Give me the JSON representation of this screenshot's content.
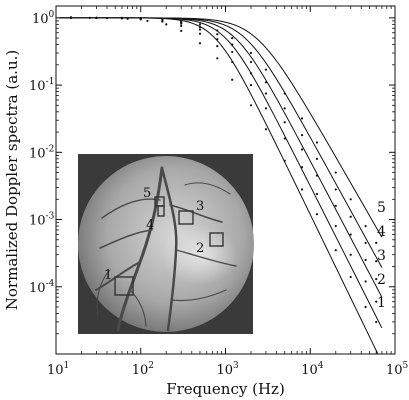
{
  "chart_data": {
    "type": "line",
    "xlabel": "Frequency (Hz)",
    "ylabel": "Normalized Doppler spectra (a.u.)",
    "xscale": "log",
    "yscale": "log",
    "xlim": [
      10,
      100000
    ],
    "ylim": [
      1e-05,
      1.5
    ],
    "x_ticks": [
      {
        "base": "10",
        "exp": "1",
        "value": 10
      },
      {
        "base": "10",
        "exp": "2",
        "value": 100
      },
      {
        "base": "10",
        "exp": "3",
        "value": 1000
      },
      {
        "base": "10",
        "exp": "4",
        "value": 10000
      },
      {
        "base": "10",
        "exp": "5",
        "value": 100000
      }
    ],
    "y_ticks": [
      {
        "base": "10",
        "exp": "0",
        "value": 1
      },
      {
        "base": "10",
        "exp": "-1",
        "value": 0.1
      },
      {
        "base": "10",
        "exp": "-2",
        "value": 0.01
      },
      {
        "base": "10",
        "exp": "-3",
        "value": 0.001
      },
      {
        "base": "10",
        "exp": "-4",
        "value": 0.0001
      }
    ],
    "grid": false,
    "legend": "labels at curve ends, right side",
    "series": [
      {
        "name": "1",
        "fc": 750,
        "slope": 2.6,
        "dots": [
          [
            15,
            1.02
          ],
          [
            25,
            1
          ],
          [
            40,
            0.99
          ],
          [
            70,
            0.97
          ],
          [
            120,
            0.9
          ],
          [
            200,
            0.8
          ],
          [
            300,
            0.64
          ],
          [
            500,
            0.42
          ],
          [
            800,
            0.25
          ],
          [
            1200,
            0.12
          ],
          [
            2000,
            0.05
          ],
          [
            3000,
            0.022
          ],
          [
            5000,
            0.0075
          ],
          [
            8000,
            0.0028
          ],
          [
            12000,
            0.0012
          ],
          [
            20000,
            0.00035
          ],
          [
            30000,
            0.00014
          ],
          [
            45000,
            5e-05
          ],
          [
            60000,
            3e-05
          ]
        ]
      },
      {
        "name": "2",
        "fc": 1000,
        "slope": 2.5,
        "dots": [
          [
            15,
            1.01
          ],
          [
            30,
            1
          ],
          [
            60,
            0.98
          ],
          [
            100,
            0.95
          ],
          [
            180,
            0.88
          ],
          [
            300,
            0.76
          ],
          [
            500,
            0.58
          ],
          [
            800,
            0.38
          ],
          [
            1200,
            0.22
          ],
          [
            2000,
            0.1
          ],
          [
            3000,
            0.045
          ],
          [
            5000,
            0.016
          ],
          [
            8000,
            0.006
          ],
          [
            12000,
            0.0024
          ],
          [
            20000,
            0.0008
          ],
          [
            30000,
            0.0003
          ],
          [
            45000,
            0.00012
          ],
          [
            60000,
            6e-05
          ]
        ]
      },
      {
        "name": "3",
        "fc": 1300,
        "slope": 2.4,
        "dots": [
          [
            15,
            1
          ],
          [
            30,
            1
          ],
          [
            60,
            0.99
          ],
          [
            100,
            0.97
          ],
          [
            180,
            0.9
          ],
          [
            300,
            0.82
          ],
          [
            500,
            0.67
          ],
          [
            800,
            0.48
          ],
          [
            1200,
            0.31
          ],
          [
            2000,
            0.15
          ],
          [
            3000,
            0.075
          ],
          [
            5000,
            0.028
          ],
          [
            8000,
            0.011
          ],
          [
            12000,
            0.0045
          ],
          [
            20000,
            0.0016
          ],
          [
            30000,
            0.0006
          ],
          [
            45000,
            0.00025
          ],
          [
            60000,
            0.00013
          ]
        ]
      },
      {
        "name": "4",
        "fc": 1700,
        "slope": 2.3,
        "dots": [
          [
            15,
            1.01
          ],
          [
            30,
            1
          ],
          [
            60,
            1
          ],
          [
            100,
            0.98
          ],
          [
            180,
            0.93
          ],
          [
            300,
            0.86
          ],
          [
            500,
            0.73
          ],
          [
            800,
            0.57
          ],
          [
            1200,
            0.4
          ],
          [
            2000,
            0.22
          ],
          [
            3000,
            0.11
          ],
          [
            5000,
            0.045
          ],
          [
            8000,
            0.018
          ],
          [
            12000,
            0.008
          ],
          [
            20000,
            0.0028
          ],
          [
            30000,
            0.0011
          ],
          [
            45000,
            0.00045
          ],
          [
            60000,
            0.00024
          ]
        ]
      },
      {
        "name": "5",
        "fc": 2300,
        "slope": 2.2,
        "dots": [
          [
            15,
            1
          ],
          [
            30,
            1
          ],
          [
            60,
            1
          ],
          [
            100,
            0.99
          ],
          [
            180,
            0.96
          ],
          [
            300,
            0.9
          ],
          [
            500,
            0.8
          ],
          [
            800,
            0.65
          ],
          [
            1200,
            0.5
          ],
          [
            2000,
            0.3
          ],
          [
            3000,
            0.17
          ],
          [
            5000,
            0.075
          ],
          [
            8000,
            0.032
          ],
          [
            12000,
            0.014
          ],
          [
            20000,
            0.005
          ],
          [
            30000,
            0.002
          ],
          [
            45000,
            0.0008
          ],
          [
            60000,
            0.00045
          ]
        ]
      }
    ],
    "inset_roi_labels": [
      "1",
      "2",
      "3",
      "4",
      "5"
    ]
  }
}
